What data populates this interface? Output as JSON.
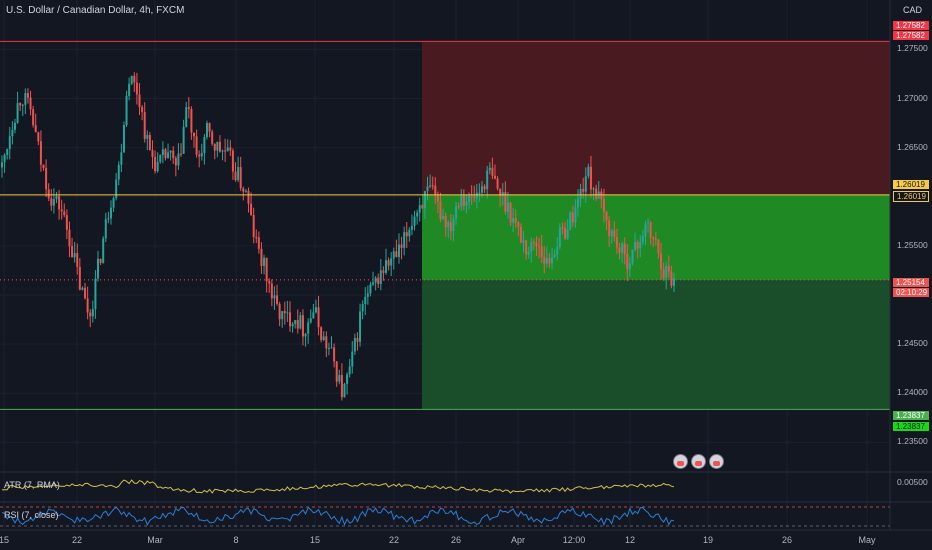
{
  "header": {
    "symbol_title": "U.S. Dollar / Canadian Dollar, 4h, FXCM",
    "currency": "CAD"
  },
  "indicators": {
    "atr_label": "ATR (7, RMA)",
    "atr_value": "0.00500",
    "rsi_label": "RSI (7, close)"
  },
  "price_tags": {
    "stop_top": "1.27582",
    "stop_bottom": "1.27582",
    "entry_top": "1.26019",
    "entry_bottom": "1.26019",
    "last_price": "1.25154",
    "countdown": "02:10:29",
    "target_top": "1.23837",
    "target_bottom": "1.23837"
  },
  "colors": {
    "background": "#131722",
    "up_candle": "#26a69a",
    "down_candle": "#ef5350",
    "stop_zone": "#4a1a21",
    "target_zone": "#1a4d2a",
    "profit_fill": "#1f8a24",
    "entry_line": "#f7c948",
    "stop_line": "#f23645",
    "target_line": "#4caf50",
    "atr_line": "#d4c248",
    "rsi_line": "#2d7dd2"
  },
  "chart_data": {
    "type": "candlestick",
    "title": "U.S. Dollar / Canadian Dollar, 4h, FXCM",
    "y_axis_ticks": [
      "1.27500",
      "1.27000",
      "1.26500",
      "1.26000",
      "1.25500",
      "1.25000",
      "1.24500",
      "1.24000",
      "1.23500"
    ],
    "ylim": [
      1.2325,
      1.2785
    ],
    "x_axis_ticks": [
      "15",
      "22",
      "Mar",
      "8",
      "15",
      "22",
      "26",
      "Apr",
      "12:00",
      "12",
      "19",
      "26",
      "May"
    ],
    "close_path": [
      1.263,
      1.2675,
      1.2705,
      1.2685,
      1.2635,
      1.26,
      1.259,
      1.2555,
      1.251,
      1.2478,
      1.2535,
      1.259,
      1.263,
      1.2725,
      1.2705,
      1.265,
      1.263,
      1.2645,
      1.2625,
      1.2695,
      1.2635,
      1.2665,
      1.265,
      1.2645,
      1.2625,
      1.2605,
      1.2555,
      1.2525,
      1.249,
      1.2475,
      1.248,
      1.2465,
      1.2485,
      1.2455,
      1.2435,
      1.2398,
      1.2435,
      1.249,
      1.2505,
      1.2525,
      1.2535,
      1.2545,
      1.2575,
      1.2595,
      1.2605,
      1.2585,
      1.257,
      1.2605,
      1.2595,
      1.2605,
      1.2625,
      1.2605,
      1.259,
      1.2565,
      1.2545,
      1.2555,
      1.253,
      1.2555,
      1.257,
      1.259,
      1.2625,
      1.2605,
      1.2575,
      1.2555,
      1.2535,
      1.2545,
      1.257,
      1.2555,
      1.2525,
      1.2515
    ],
    "trade_setup": {
      "type": "long",
      "stop_price": 1.27582,
      "entry_price": 1.26019,
      "last_price": 1.25154,
      "target_price": 1.23837
    },
    "atr": {
      "name": "ATR (7, RMA)",
      "last": 0.005
    },
    "rsi": {
      "name": "RSI (7, close)",
      "levels": [
        70,
        30
      ]
    }
  }
}
